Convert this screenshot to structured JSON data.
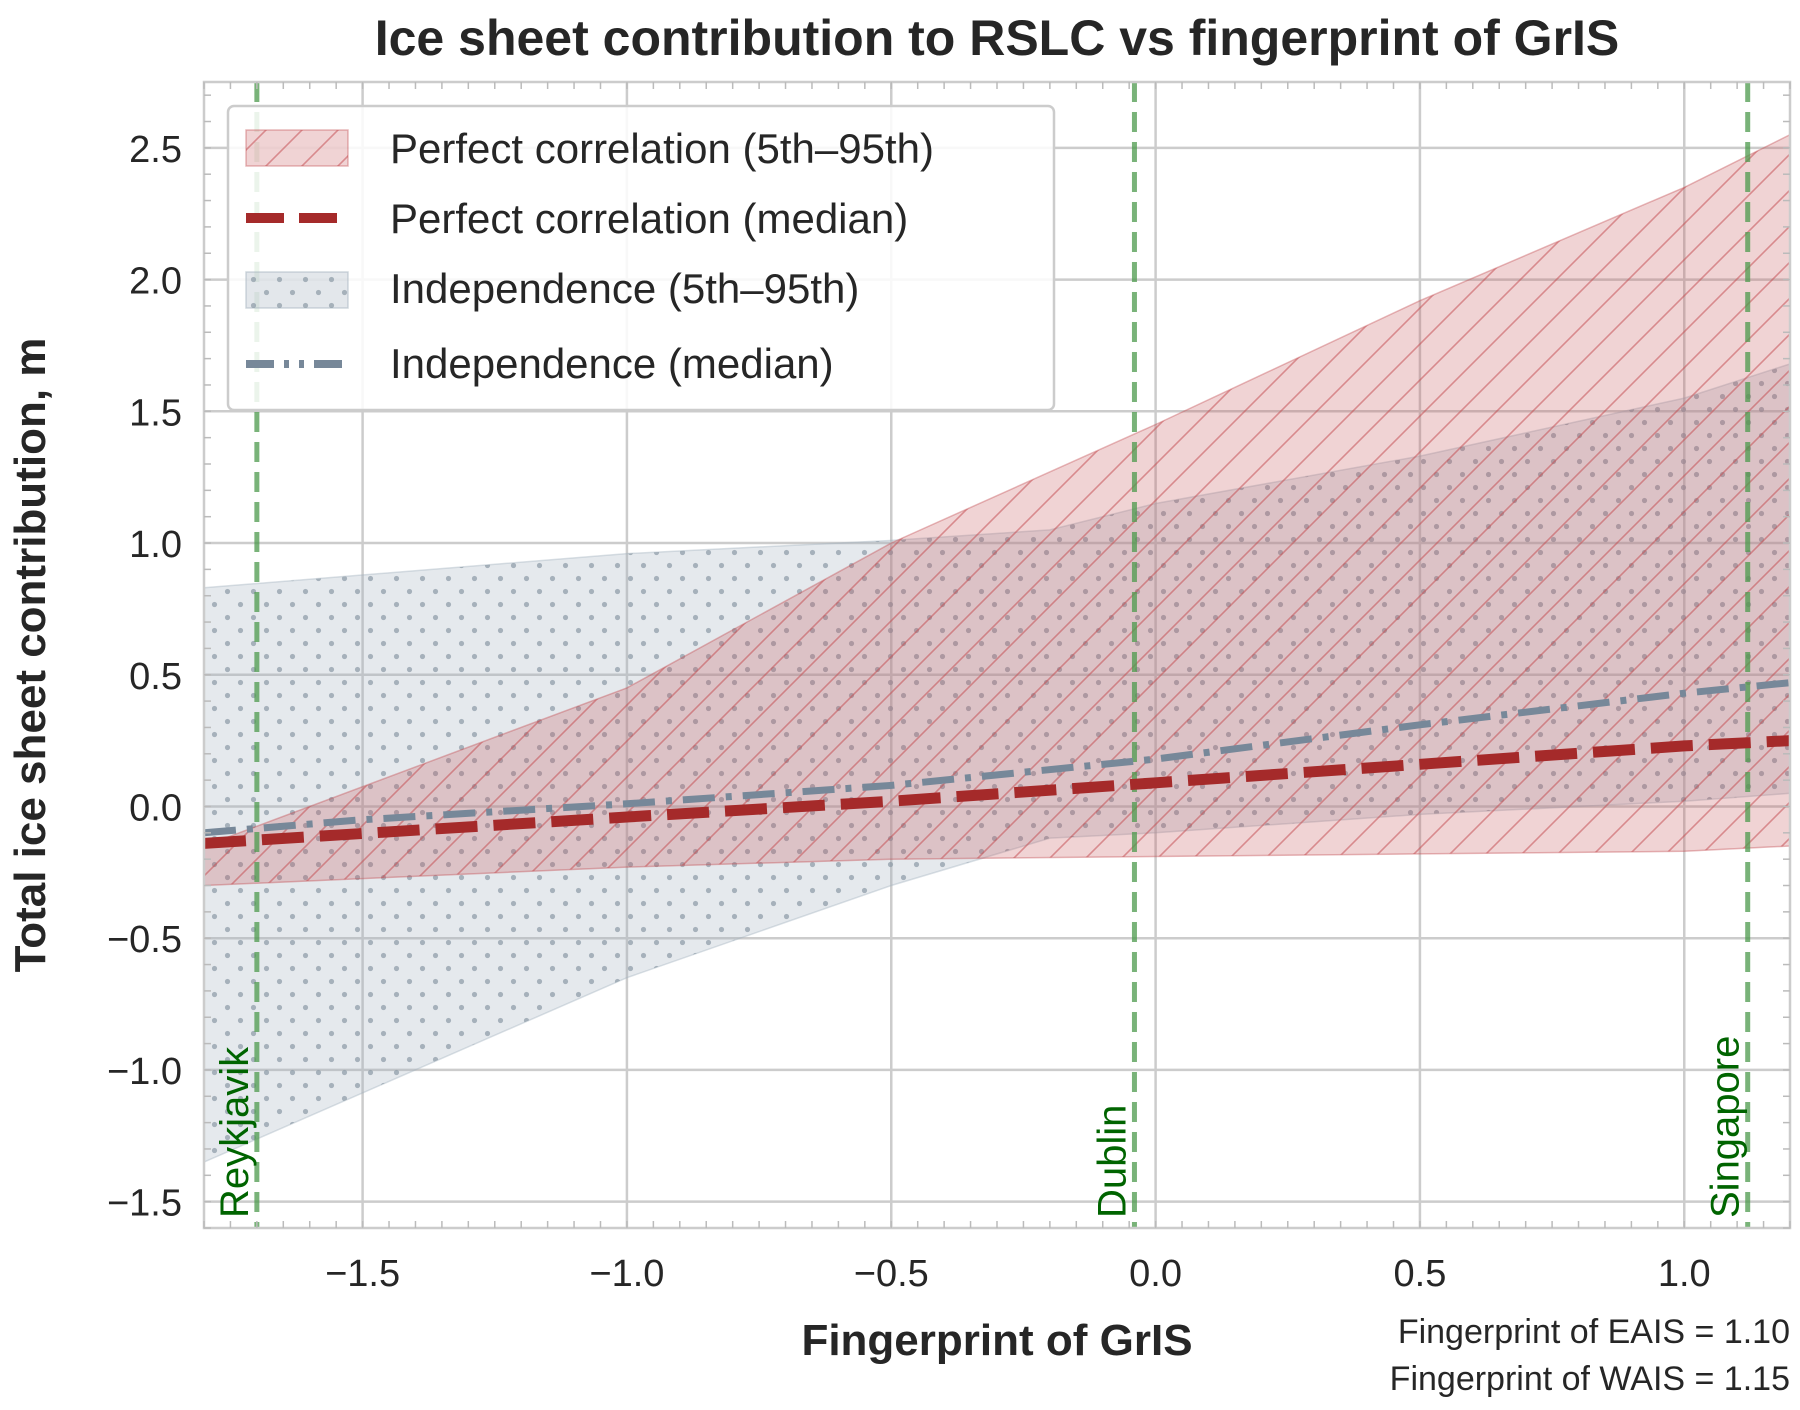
{
  "chart_data": {
    "type": "line",
    "title": "Ice sheet contribution to RSLC vs fingerprint of GrIS",
    "xlabel": "Fingerprint of GrIS",
    "ylabel": "Total ice sheet contribution, m",
    "xlim": [
      -1.8,
      1.2
    ],
    "ylim": [
      -1.6,
      2.75
    ],
    "x_ticks": [
      -1.5,
      -1.0,
      -0.5,
      0.0,
      0.5,
      1.0
    ],
    "x_tick_labels": [
      "−1.5",
      "−1.0",
      "−0.5",
      "0.0",
      "0.5",
      "1.0"
    ],
    "y_ticks": [
      -1.5,
      -1.0,
      -0.5,
      0.0,
      0.5,
      1.0,
      1.5,
      2.0,
      2.5
    ],
    "y_tick_labels": [
      "−1.5",
      "−1.0",
      "−0.5",
      "0.0",
      "0.5",
      "1.0",
      "1.5",
      "2.0",
      "2.5"
    ],
    "grid": true,
    "legend_position": "upper-left",
    "series": [
      {
        "name": "Perfect correlation (5th–95th)",
        "kind": "band",
        "color": "#c44e52",
        "hatch": "diagonal",
        "x": [
          -1.8,
          -1.0,
          -0.5,
          0.0,
          0.5,
          1.0,
          1.2
        ],
        "lower": [
          -0.3,
          -0.23,
          -0.2,
          -0.19,
          -0.18,
          -0.17,
          -0.15
        ],
        "upper": [
          -0.15,
          0.45,
          1.0,
          1.45,
          1.92,
          2.35,
          2.55
        ]
      },
      {
        "name": "Perfect correlation (median)",
        "kind": "line",
        "color": "#a52a2a",
        "dash": "dashed",
        "x": [
          -1.8,
          -1.0,
          -0.5,
          0.0,
          0.5,
          1.0,
          1.2
        ],
        "y": [
          -0.14,
          -0.04,
          0.02,
          0.09,
          0.16,
          0.23,
          0.25
        ]
      },
      {
        "name": "Independence (5th–95th)",
        "kind": "band",
        "color": "#a3b1bd",
        "hatch": "dots",
        "x": [
          -1.8,
          -1.0,
          -0.5,
          -0.2,
          0.0,
          0.5,
          1.0,
          1.2
        ],
        "lower": [
          -1.35,
          -0.65,
          -0.3,
          -0.12,
          -0.1,
          -0.03,
          0.02,
          0.05
        ],
        "upper": [
          0.83,
          0.96,
          1.01,
          1.05,
          1.15,
          1.33,
          1.55,
          1.68
        ]
      },
      {
        "name": "Independence (median)",
        "kind": "line",
        "color": "#778899",
        "dash": "dashdot",
        "x": [
          -1.8,
          -1.5,
          -1.0,
          -0.5,
          0.0,
          0.5,
          1.0,
          1.2
        ],
        "y": [
          -0.1,
          -0.05,
          0.01,
          0.08,
          0.18,
          0.31,
          0.43,
          0.47
        ]
      }
    ],
    "locations": [
      {
        "name": "Reykjavik",
        "x": -1.7
      },
      {
        "name": "Dublin",
        "x": -0.04
      },
      {
        "name": "Singapore",
        "x": 1.12
      }
    ],
    "annotation_lines": [
      "Fingerprint of EAIS = 1.10",
      "Fingerprint of WAIS = 1.15"
    ]
  }
}
